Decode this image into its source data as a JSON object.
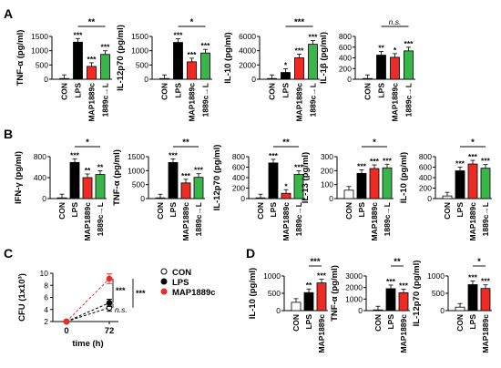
{
  "panel_labels": [
    "A",
    "B",
    "C",
    "D"
  ],
  "colors": {
    "CON": "#ffffff",
    "LPS": "#000000",
    "MAP1889c": "#ee2a24",
    "1889c→L": "#3ab54a"
  },
  "chart_data": [
    {
      "id": "A1",
      "panel": "A",
      "type": "bar",
      "ylabel": "TNF-α (pg/ml)",
      "ylim": [
        0,
        1500
      ],
      "yticks": [
        "0",
        "500",
        "1000",
        "1500"
      ],
      "categories": [
        "CON",
        "LPS",
        "MAP1889c",
        "1889c→L"
      ],
      "values": [
        0,
        1300,
        450,
        870
      ],
      "marks": [
        "",
        "***",
        "***",
        "***"
      ],
      "comparisons": [
        {
          "from": 1,
          "to": 3,
          "label": "**"
        }
      ]
    },
    {
      "id": "A2",
      "panel": "A",
      "type": "bar",
      "ylabel": "IL-12p70 (pg/ml)",
      "ylim": [
        0,
        1500
      ],
      "yticks": [
        "0",
        "500",
        "1000",
        "1500"
      ],
      "categories": [
        "CON",
        "LPS",
        "MAP1889c",
        "1889c→L"
      ],
      "values": [
        0,
        1290,
        610,
        920
      ],
      "marks": [
        "",
        "***",
        "***",
        "***"
      ],
      "comparisons": [
        {
          "from": 1,
          "to": 3,
          "label": "*"
        }
      ]
    },
    {
      "id": "A3",
      "panel": "A",
      "type": "bar",
      "ylabel": "IL-10 (pg/ml)",
      "ylim": [
        0,
        6000
      ],
      "yticks": [
        "0",
        "2000",
        "4000",
        "6000"
      ],
      "categories": [
        "CON",
        "LPS",
        "MAP1889c",
        "1889c→L"
      ],
      "values": [
        0,
        950,
        3000,
        4900
      ],
      "marks": [
        "",
        "*",
        "***",
        "***"
      ],
      "comparisons": [
        {
          "from": 1,
          "to": 3,
          "label": "***"
        }
      ]
    },
    {
      "id": "A4",
      "panel": "A",
      "type": "bar",
      "ylabel": "IL-1β (pg/ml)",
      "ylim": [
        0,
        800
      ],
      "yticks": [
        "0",
        "200",
        "400",
        "600",
        "800"
      ],
      "categories": [
        "CON",
        "LPS",
        "MAP1889c",
        "1889c→L"
      ],
      "values": [
        0,
        450,
        410,
        530
      ],
      "marks": [
        "",
        "**",
        "*",
        "***"
      ],
      "comparisons": [
        {
          "from": 1,
          "to": 3,
          "label": "n.s."
        }
      ]
    },
    {
      "id": "B1",
      "panel": "B",
      "type": "bar",
      "ylabel": "IFN-γ (pg/ml)",
      "ylim": [
        0,
        800
      ],
      "yticks": [
        "0",
        "400",
        "800"
      ],
      "categories": [
        "CON",
        "LPS",
        "MAP1889c",
        "1889c→L"
      ],
      "values": [
        0,
        690,
        400,
        460
      ],
      "marks": [
        "",
        "***",
        "**",
        "**"
      ],
      "comparisons": [
        {
          "from": 1,
          "to": 3,
          "label": "*"
        }
      ]
    },
    {
      "id": "B2",
      "panel": "B",
      "type": "bar",
      "ylabel": "TNF-α (pg/ml)",
      "ylim": [
        0,
        1500
      ],
      "yticks": [
        "0",
        "500",
        "1000",
        "1500"
      ],
      "categories": [
        "CON",
        "LPS",
        "MAP1889c",
        "1889c→L"
      ],
      "values": [
        0,
        1290,
        560,
        760
      ],
      "marks": [
        "",
        "***",
        "***",
        "***"
      ],
      "comparisons": [
        {
          "from": 1,
          "to": 3,
          "label": "**"
        }
      ]
    },
    {
      "id": "B3",
      "panel": "B",
      "type": "bar",
      "ylabel": "IL-12p70 (pg/ml)",
      "ylim": [
        0,
        800
      ],
      "yticks": [
        "0",
        "200",
        "400",
        "600",
        "800"
      ],
      "categories": [
        "CON",
        "LPS",
        "MAP1889c",
        "1889c→L"
      ],
      "values": [
        0,
        680,
        100,
        460
      ],
      "marks": [
        "",
        "***",
        "*",
        "***"
      ],
      "comparisons": [
        {
          "from": 1,
          "to": 3,
          "label": "**"
        }
      ]
    },
    {
      "id": "B4",
      "panel": "B",
      "type": "bar",
      "ylabel": "IL-13 (pg/ml)",
      "ylim": [
        0,
        300
      ],
      "yticks": [
        "0",
        "100",
        "200",
        "300"
      ],
      "categories": [
        "CON",
        "LPS",
        "MAP1889c",
        "1889c→L"
      ],
      "values": [
        60,
        180,
        215,
        220
      ],
      "marks": [
        "",
        "***",
        "***",
        "***"
      ],
      "comparisons": [
        {
          "from": 1,
          "to": 3,
          "label": "*"
        }
      ]
    },
    {
      "id": "B5",
      "panel": "B",
      "type": "bar",
      "ylabel": "IL-10 (pg/ml)",
      "ylim": [
        0,
        800
      ],
      "yticks": [
        "0",
        "200",
        "400",
        "600",
        "800"
      ],
      "categories": [
        "CON",
        "LPS",
        "MAP1889c",
        "1889c→L"
      ],
      "values": [
        50,
        530,
        660,
        580
      ],
      "marks": [
        "",
        "***",
        "***",
        "***"
      ],
      "comparisons": [
        {
          "from": 1,
          "to": 3,
          "label": "*"
        }
      ]
    },
    {
      "id": "C",
      "panel": "C",
      "type": "line",
      "ylabel": "CFU (1x10³)",
      "xlabel": "time (h)",
      "ylim": [
        2,
        10
      ],
      "yticks": [
        "2",
        "4",
        "6",
        "8",
        "10"
      ],
      "x": [
        0,
        72
      ],
      "xticks": [
        "0",
        "72"
      ],
      "series": [
        {
          "name": "CON",
          "values": [
            2,
            4.3
          ],
          "error": [
            0,
            0.6
          ],
          "marker": "open"
        },
        {
          "name": "LPS",
          "values": [
            2,
            5.1
          ],
          "error": [
            0,
            0.6
          ],
          "marker": "filled"
        },
        {
          "name": "MAP1889c",
          "values": [
            2,
            9.1
          ],
          "error": [
            0,
            0.8
          ],
          "marker": "filled-red"
        }
      ],
      "annotations": [
        "***",
        "***",
        "n.s."
      ]
    },
    {
      "id": "D1",
      "panel": "D",
      "type": "bar",
      "ylabel": "IL-10 (pg/ml)",
      "ylim": [
        0,
        1000
      ],
      "yticks": [
        "0",
        "500",
        "1000"
      ],
      "categories": [
        "CON",
        "LPS",
        "MAP1889c"
      ],
      "values": [
        240,
        520,
        800
      ],
      "marks": [
        "",
        "**",
        "***"
      ],
      "comparisons": [
        {
          "from": 1,
          "to": 2,
          "label": "***"
        }
      ]
    },
    {
      "id": "D2",
      "panel": "D",
      "type": "bar",
      "ylabel": "TNF-α (pg/ml)",
      "ylim": [
        0,
        3000
      ],
      "yticks": [
        "0",
        "1000",
        "2000",
        "3000"
      ],
      "categories": [
        "CON",
        "LPS",
        "MAP1889c"
      ],
      "values": [
        0,
        1900,
        1550
      ],
      "marks": [
        "",
        "***",
        "***"
      ],
      "comparisons": [
        {
          "from": 1,
          "to": 2,
          "label": "**"
        }
      ]
    },
    {
      "id": "D3",
      "panel": "D",
      "type": "bar",
      "ylabel": "IL-12p70 (pg/ml)",
      "ylim": [
        0,
        1000
      ],
      "yticks": [
        "0",
        "500",
        "1000"
      ],
      "categories": [
        "CON",
        "LPS",
        "MAP1889c"
      ],
      "values": [
        100,
        750,
        640
      ],
      "marks": [
        "",
        "***",
        "***"
      ],
      "comparisons": [
        {
          "from": 1,
          "to": 2,
          "label": "*"
        }
      ]
    }
  ]
}
